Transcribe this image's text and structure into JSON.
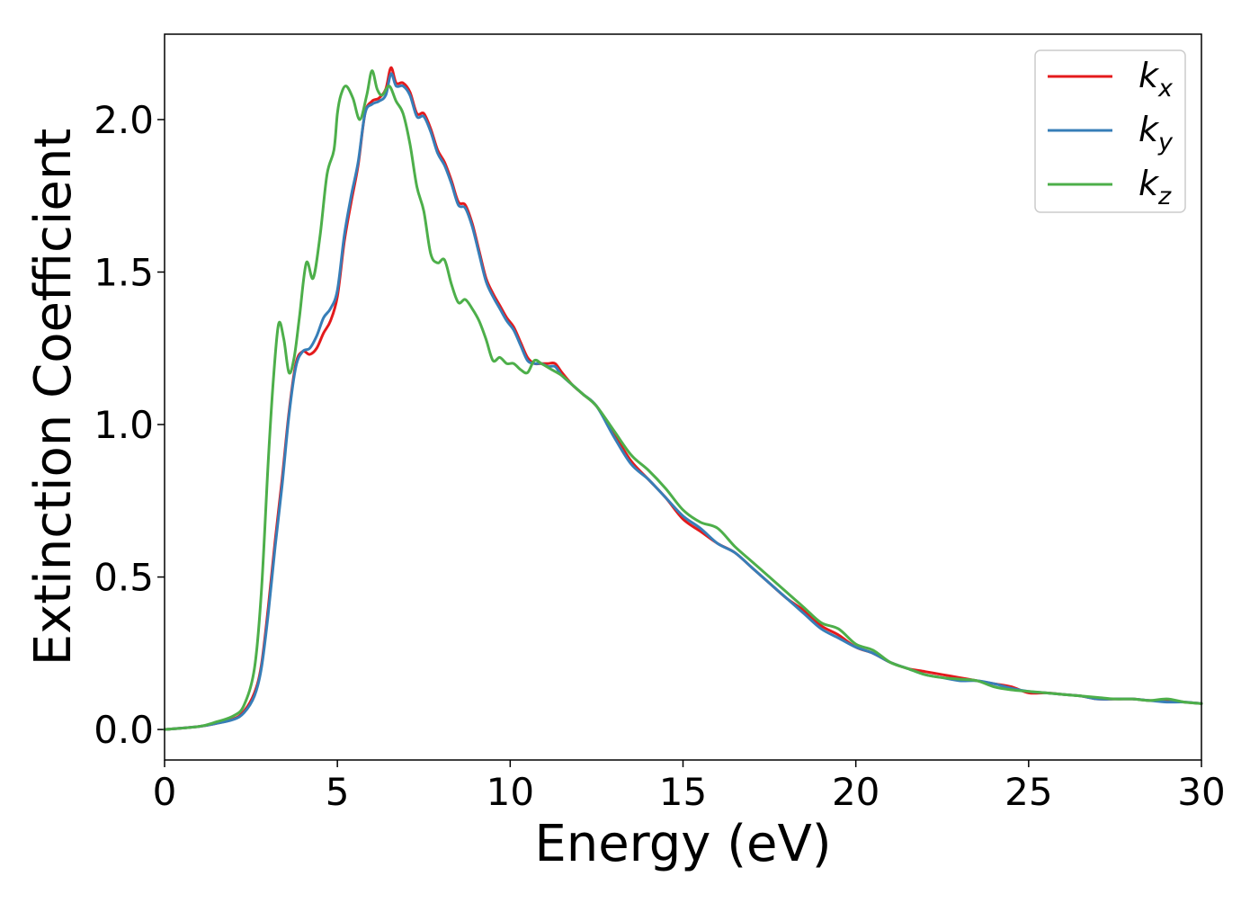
{
  "chart_data": {
    "type": "line",
    "title": "",
    "xlabel": "Energy (eV)",
    "ylabel": "Extinction Coefficient",
    "xlim": [
      0,
      30
    ],
    "ylim": [
      -0.1,
      2.28
    ],
    "xticks": [
      0,
      5,
      10,
      15,
      20,
      25,
      30
    ],
    "xtick_labels": [
      "0",
      "5",
      "10",
      "15",
      "20",
      "25",
      "30"
    ],
    "yticks": [
      0.0,
      0.5,
      1.0,
      1.5,
      2.0
    ],
    "ytick_labels": [
      "0.0",
      "0.5",
      "1.0",
      "1.5",
      "2.0"
    ],
    "grid": false,
    "legend_position": "top-right",
    "series": [
      {
        "name": "k",
        "subscript": "x",
        "color": "#e41a1c",
        "x": [
          0,
          1,
          1.5,
          2,
          2.3,
          2.6,
          2.8,
          3.0,
          3.2,
          3.4,
          3.6,
          3.8,
          4.0,
          4.2,
          4.4,
          4.6,
          4.8,
          5.0,
          5.2,
          5.4,
          5.6,
          5.8,
          6.0,
          6.2,
          6.4,
          6.55,
          6.7,
          6.9,
          7.1,
          7.3,
          7.5,
          7.7,
          7.9,
          8.1,
          8.3,
          8.5,
          8.7,
          8.9,
          9.1,
          9.3,
          9.5,
          9.7,
          9.9,
          10.1,
          10.3,
          10.5,
          10.7,
          10.9,
          11.1,
          11.3,
          11.5,
          11.8,
          12.1,
          12.5,
          13.0,
          13.5,
          14.0,
          14.5,
          15.0,
          15.5,
          16.0,
          16.5,
          17.0,
          17.5,
          18.0,
          18.5,
          19.0,
          19.5,
          20.0,
          20.5,
          21.0,
          21.5,
          22.0,
          22.5,
          23.0,
          23.5,
          24.0,
          24.5,
          25.0,
          25.5,
          26.0,
          26.5,
          27.0,
          27.5,
          28.0,
          28.5,
          29.0,
          29.5,
          30.0
        ],
        "values": [
          0,
          0.01,
          0.02,
          0.035,
          0.06,
          0.12,
          0.21,
          0.4,
          0.62,
          0.82,
          1.04,
          1.2,
          1.24,
          1.23,
          1.25,
          1.3,
          1.34,
          1.42,
          1.6,
          1.73,
          1.85,
          2.02,
          2.06,
          2.07,
          2.1,
          2.17,
          2.12,
          2.12,
          2.09,
          2.02,
          2.02,
          1.97,
          1.9,
          1.86,
          1.8,
          1.73,
          1.72,
          1.66,
          1.57,
          1.48,
          1.43,
          1.39,
          1.35,
          1.32,
          1.27,
          1.22,
          1.2,
          1.2,
          1.2,
          1.2,
          1.17,
          1.13,
          1.1,
          1.06,
          0.97,
          0.88,
          0.82,
          0.76,
          0.69,
          0.65,
          0.61,
          0.58,
          0.53,
          0.48,
          0.43,
          0.39,
          0.34,
          0.31,
          0.27,
          0.25,
          0.22,
          0.2,
          0.19,
          0.18,
          0.17,
          0.16,
          0.15,
          0.14,
          0.12,
          0.12,
          0.115,
          0.11,
          0.1,
          0.1,
          0.1,
          0.095,
          0.095,
          0.09,
          0.085
        ]
      },
      {
        "name": "k",
        "subscript": "y",
        "color": "#377eb8",
        "x": [
          0,
          1,
          1.5,
          2,
          2.3,
          2.6,
          2.8,
          3.0,
          3.2,
          3.4,
          3.6,
          3.8,
          4.0,
          4.2,
          4.4,
          4.6,
          4.8,
          5.0,
          5.2,
          5.4,
          5.6,
          5.8,
          6.0,
          6.2,
          6.4,
          6.55,
          6.7,
          6.9,
          7.1,
          7.3,
          7.5,
          7.7,
          7.9,
          8.1,
          8.3,
          8.5,
          8.7,
          8.9,
          9.1,
          9.3,
          9.5,
          9.7,
          9.9,
          10.1,
          10.3,
          10.5,
          10.7,
          10.9,
          11.1,
          11.3,
          11.5,
          11.8,
          12.1,
          12.5,
          13.0,
          13.5,
          14.0,
          14.5,
          15.0,
          15.5,
          16.0,
          16.5,
          17.0,
          17.5,
          18.0,
          18.5,
          19.0,
          19.5,
          20.0,
          20.5,
          21.0,
          21.5,
          22.0,
          22.5,
          23.0,
          23.5,
          24.0,
          24.5,
          25.0,
          25.5,
          26.0,
          26.5,
          27.0,
          27.5,
          28.0,
          28.5,
          29.0,
          29.5,
          30.0
        ],
        "values": [
          0,
          0.01,
          0.02,
          0.033,
          0.055,
          0.11,
          0.2,
          0.38,
          0.6,
          0.8,
          1.03,
          1.19,
          1.24,
          1.25,
          1.29,
          1.35,
          1.38,
          1.44,
          1.62,
          1.75,
          1.86,
          2.02,
          2.05,
          2.06,
          2.08,
          2.15,
          2.11,
          2.11,
          2.08,
          2.01,
          2.01,
          1.96,
          1.89,
          1.85,
          1.79,
          1.72,
          1.71,
          1.65,
          1.56,
          1.47,
          1.42,
          1.38,
          1.34,
          1.31,
          1.26,
          1.21,
          1.2,
          1.2,
          1.19,
          1.19,
          1.16,
          1.13,
          1.1,
          1.06,
          0.96,
          0.87,
          0.82,
          0.76,
          0.7,
          0.66,
          0.61,
          0.58,
          0.53,
          0.48,
          0.43,
          0.38,
          0.33,
          0.3,
          0.27,
          0.25,
          0.22,
          0.2,
          0.18,
          0.17,
          0.16,
          0.16,
          0.15,
          0.135,
          0.125,
          0.12,
          0.115,
          0.11,
          0.1,
          0.1,
          0.1,
          0.095,
          0.09,
          0.09,
          0.085
        ]
      },
      {
        "name": "k",
        "subscript": "z",
        "color": "#4daf4a",
        "x": [
          0,
          1,
          1.5,
          2,
          2.3,
          2.6,
          2.8,
          3.0,
          3.15,
          3.3,
          3.45,
          3.6,
          3.75,
          3.9,
          4.1,
          4.3,
          4.5,
          4.7,
          4.9,
          5.0,
          5.1,
          5.25,
          5.45,
          5.65,
          5.85,
          6.0,
          6.15,
          6.3,
          6.5,
          6.7,
          6.9,
          7.1,
          7.3,
          7.5,
          7.7,
          7.9,
          8.1,
          8.3,
          8.5,
          8.7,
          8.9,
          9.1,
          9.3,
          9.5,
          9.7,
          9.9,
          10.1,
          10.3,
          10.5,
          10.7,
          10.9,
          11.2,
          11.5,
          11.8,
          12.1,
          12.5,
          13.0,
          13.5,
          14.0,
          14.5,
          15.0,
          15.5,
          16.0,
          16.5,
          17.0,
          17.5,
          18.0,
          18.5,
          19.0,
          19.5,
          20.0,
          20.5,
          21.0,
          21.5,
          22.0,
          22.5,
          23.0,
          23.5,
          24.0,
          24.5,
          25.0,
          25.5,
          26.0,
          26.5,
          27.0,
          27.5,
          28.0,
          28.5,
          29.0,
          29.5,
          30.0
        ],
        "values": [
          0,
          0.01,
          0.025,
          0.045,
          0.08,
          0.2,
          0.45,
          0.88,
          1.15,
          1.33,
          1.28,
          1.17,
          1.22,
          1.35,
          1.53,
          1.48,
          1.62,
          1.82,
          1.9,
          2.02,
          2.08,
          2.11,
          2.07,
          2.0,
          2.08,
          2.16,
          2.1,
          2.08,
          2.11,
          2.06,
          2.02,
          1.92,
          1.78,
          1.7,
          1.56,
          1.53,
          1.54,
          1.46,
          1.4,
          1.41,
          1.38,
          1.34,
          1.28,
          1.21,
          1.22,
          1.2,
          1.2,
          1.18,
          1.17,
          1.21,
          1.2,
          1.18,
          1.16,
          1.13,
          1.1,
          1.06,
          0.98,
          0.9,
          0.85,
          0.79,
          0.72,
          0.68,
          0.66,
          0.6,
          0.55,
          0.5,
          0.45,
          0.4,
          0.35,
          0.33,
          0.28,
          0.26,
          0.22,
          0.2,
          0.18,
          0.17,
          0.165,
          0.16,
          0.14,
          0.13,
          0.125,
          0.12,
          0.115,
          0.11,
          0.105,
          0.1,
          0.1,
          0.095,
          0.1,
          0.09,
          0.085
        ]
      }
    ]
  }
}
